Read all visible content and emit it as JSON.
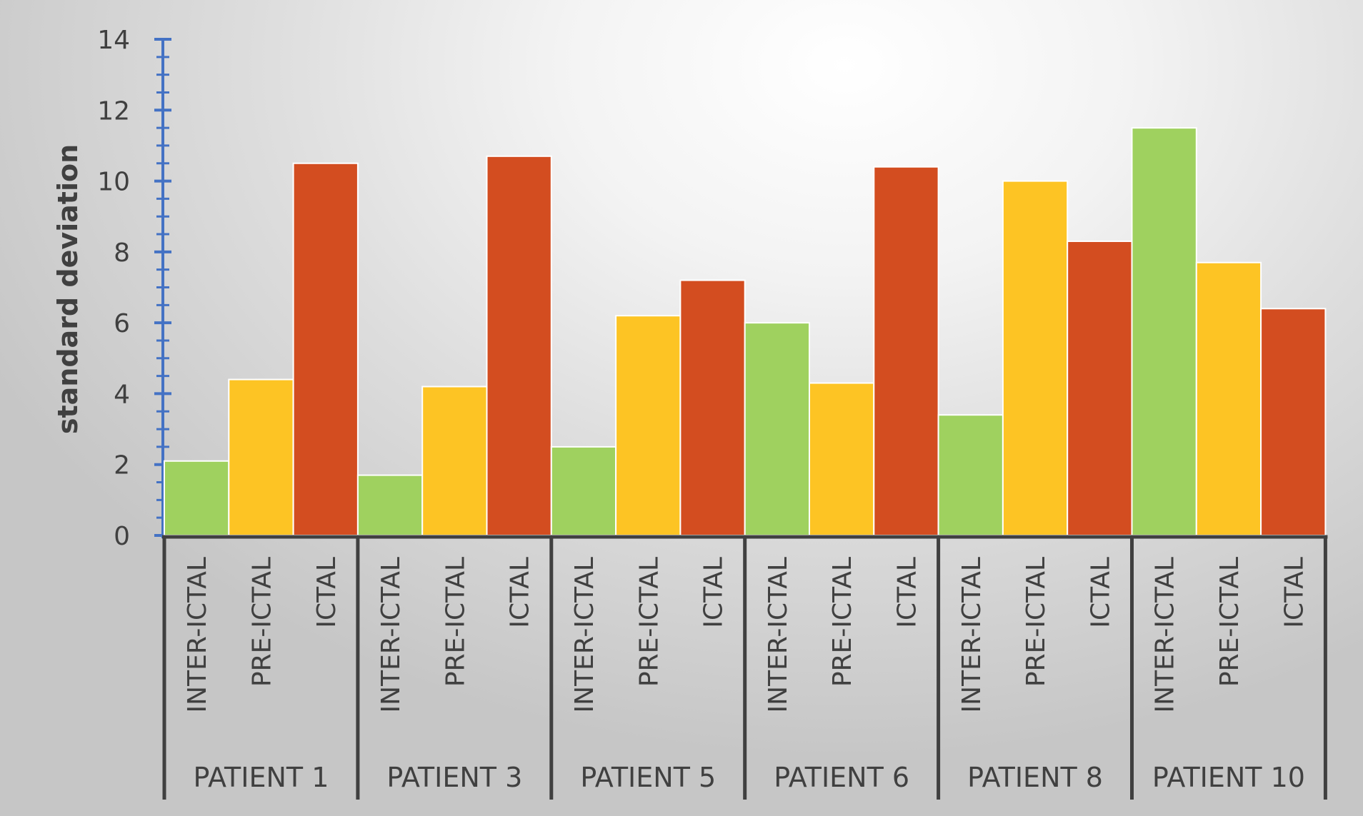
{
  "chart_data": {
    "type": "bar",
    "title": "",
    "xlabel": "",
    "ylabel": "standard deviation",
    "ylim": [
      0,
      14
    ],
    "yticks": [
      0,
      2,
      4,
      6,
      8,
      10,
      12,
      14
    ],
    "grid": false,
    "legend": "none",
    "groups": [
      {
        "name": "PATIENT 1",
        "bars": [
          {
            "label": "INTER-ICTAL",
            "value": 2.1
          },
          {
            "label": "PRE-ICTAL",
            "value": 4.4
          },
          {
            "label": "ICTAL",
            "value": 10.5
          }
        ]
      },
      {
        "name": "PATIENT 3",
        "bars": [
          {
            "label": "INTER-ICTAL",
            "value": 1.7
          },
          {
            "label": "PRE-ICTAL",
            "value": 4.2
          },
          {
            "label": "ICTAL",
            "value": 10.7
          }
        ]
      },
      {
        "name": "PATIENT 5",
        "bars": [
          {
            "label": "INTER-ICTAL",
            "value": 2.5
          },
          {
            "label": "PRE-ICTAL",
            "value": 6.2
          },
          {
            "label": "ICTAL",
            "value": 7.2
          }
        ]
      },
      {
        "name": "PATIENT 6",
        "bars": [
          {
            "label": "INTER-ICTAL",
            "value": 6.0
          },
          {
            "label": "PRE-ICTAL",
            "value": 4.3
          },
          {
            "label": "ICTAL",
            "value": 10.4
          }
        ]
      },
      {
        "name": "PATIENT 8",
        "bars": [
          {
            "label": "INTER-ICTAL",
            "value": 3.4
          },
          {
            "label": "PRE-ICTAL",
            "value": 10.0
          },
          {
            "label": "ICTAL",
            "value": 8.3
          }
        ]
      },
      {
        "name": "PATIENT 10",
        "bars": [
          {
            "label": "INTER-ICTAL",
            "value": 11.5
          },
          {
            "label": "PRE-ICTAL",
            "value": 7.7
          },
          {
            "label": "ICTAL",
            "value": 6.4
          }
        ]
      }
    ],
    "colors": {
      "INTER-ICTAL": "#9fd15f",
      "PRE-ICTAL": "#fdc424",
      "ICTAL": "#d34d20"
    },
    "y_axis_color": "#4472c4",
    "frame_color": "#404040"
  }
}
